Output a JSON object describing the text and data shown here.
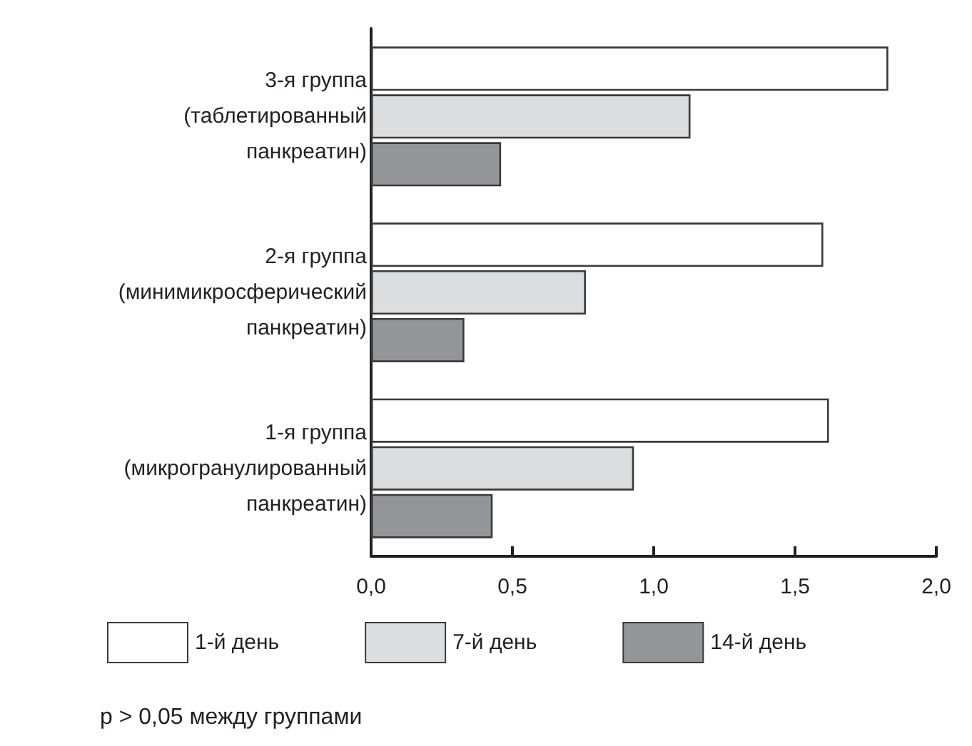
{
  "chart_data": {
    "type": "bar",
    "orientation": "horizontal",
    "categories": [
      "3-я группа\n(таблетированный\nпанкреатин)",
      "2-я группа\n(минимикросферический\nпанкреатин)",
      "1-я группа\n(микрогранулированный\nпанкреатин)"
    ],
    "series": [
      {
        "name": "1-й день",
        "color": "#ffffff",
        "values": [
          1.83,
          1.6,
          1.62
        ]
      },
      {
        "name": "7-й день",
        "color": "#dcdddf",
        "values": [
          1.13,
          0.76,
          0.93
        ]
      },
      {
        "name": "14-й день",
        "color": "#939598",
        "values": [
          0.46,
          0.33,
          0.43
        ]
      }
    ],
    "xlim": [
      0,
      2
    ],
    "xticks": [
      {
        "value": 0,
        "label": "0,0"
      },
      {
        "value": 0.5,
        "label": "0,5"
      },
      {
        "value": 1,
        "label": "1,0"
      },
      {
        "value": 1.5,
        "label": "1,5"
      },
      {
        "value": 2,
        "label": "2,0"
      }
    ],
    "grid": false,
    "legend": "bottom",
    "annotations": [
      "p > 0,05 между группами"
    ]
  }
}
